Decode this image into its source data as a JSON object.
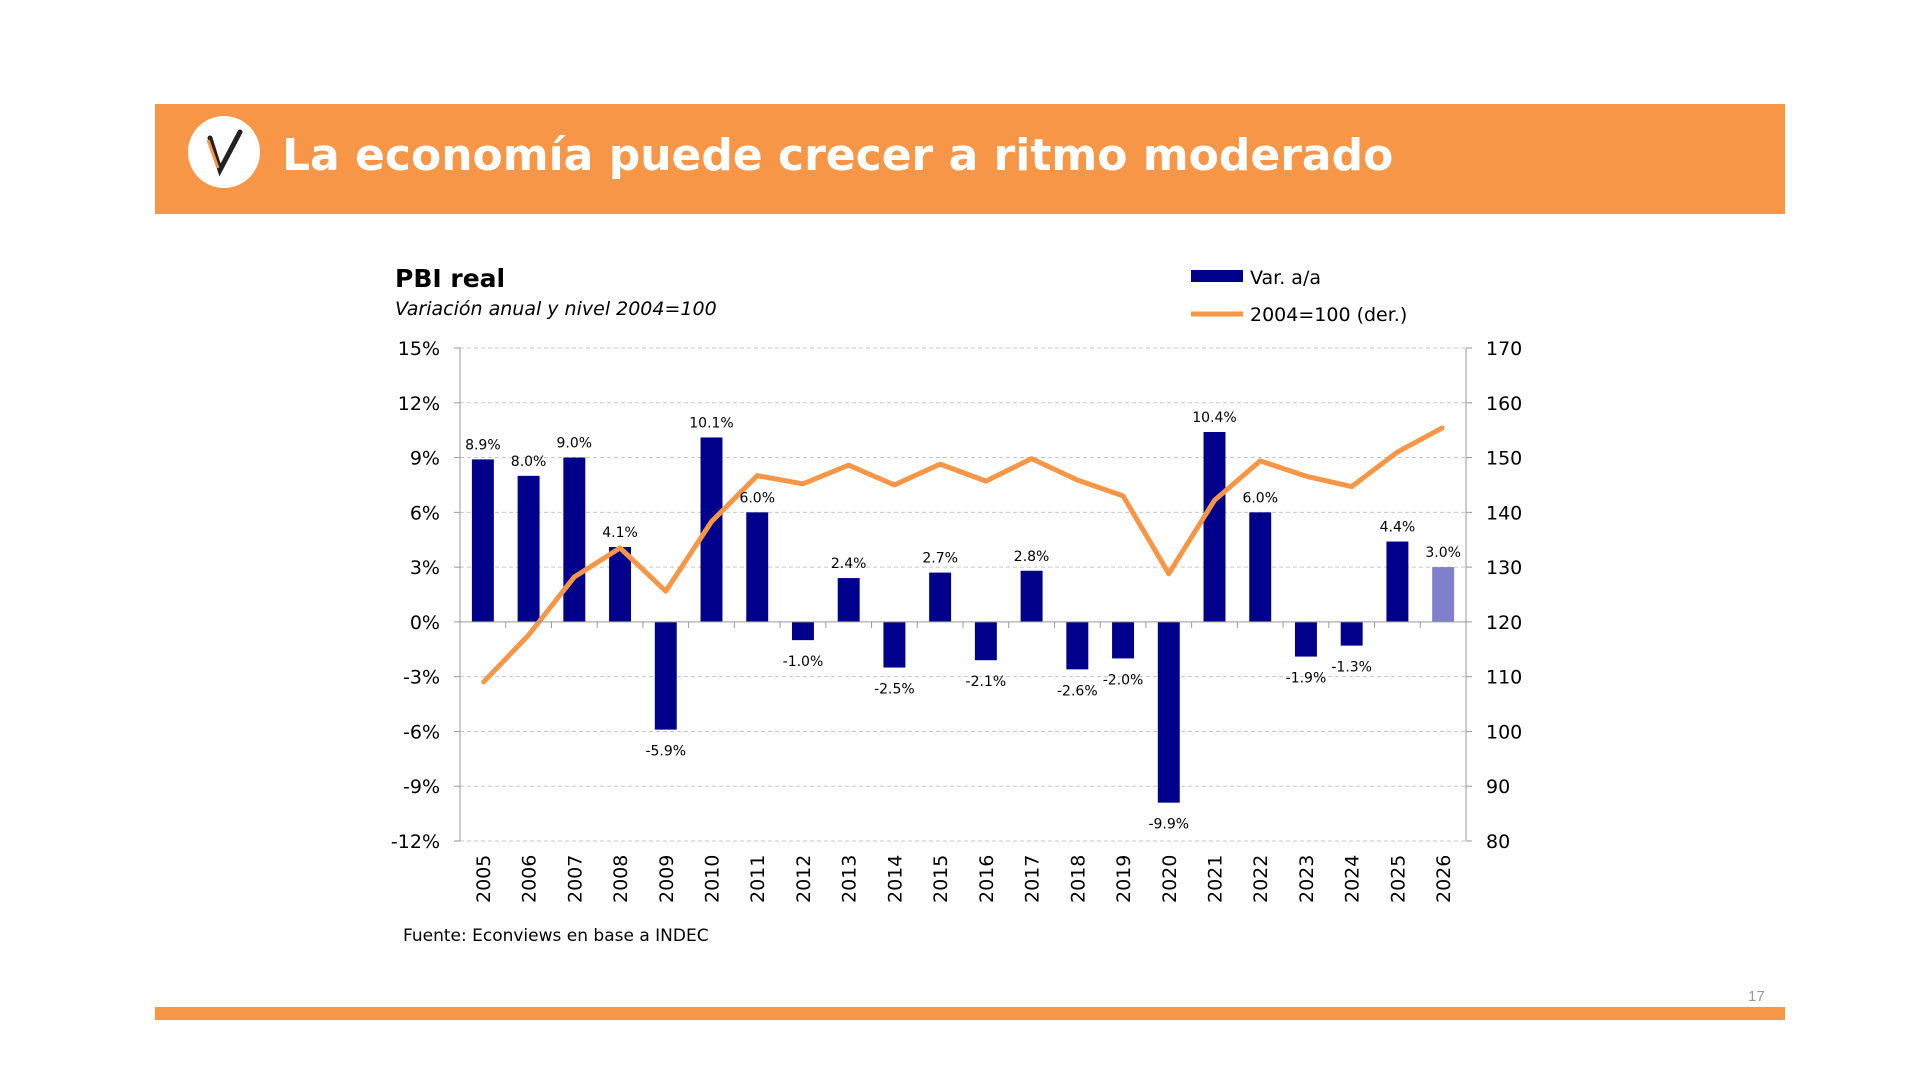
{
  "header": {
    "title": "La economía puede crecer a ritmo moderado",
    "logo_letter": "V"
  },
  "page_number": "17",
  "colors": {
    "accent": "#F79646",
    "bar": "#00008B",
    "bar_projected": "#7F7FCC",
    "line": "#F79646"
  },
  "chart_data": {
    "type": "bar+line",
    "title": "PBI real",
    "subtitle": "Variación anual y nivel 2004=100",
    "source": "Fuente: Econviews en base a INDEC",
    "legend_position": "top-right",
    "grid": true,
    "categories": [
      "2005",
      "2006",
      "2007",
      "2008",
      "2009",
      "2010",
      "2011",
      "2012",
      "2013",
      "2014",
      "2015",
      "2016",
      "2017",
      "2018",
      "2019",
      "2020",
      "2021",
      "2022",
      "2023",
      "2024",
      "2025",
      "2026"
    ],
    "series": [
      {
        "name": "Var. a/a",
        "type": "bar",
        "axis": "left",
        "values": [
          8.9,
          8.0,
          9.0,
          4.1,
          -5.9,
          10.1,
          6.0,
          -1.0,
          2.4,
          -2.5,
          2.7,
          -2.1,
          2.8,
          -2.6,
          -2.0,
          -9.9,
          10.4,
          6.0,
          -1.9,
          -1.3,
          4.4,
          3.0
        ],
        "labels": [
          "8.9%",
          "8.0%",
          "9.0%",
          "4.1%",
          "-5.9%",
          "10.1%",
          "6.0%",
          "-1.0%",
          "2.4%",
          "-2.5%",
          "2.7%",
          "-2.1%",
          "2.8%",
          "-2.6%",
          "-2.0%",
          "-9.9%",
          "10.4%",
          "6.0%",
          "-1.9%",
          "-1.3%",
          "4.4%",
          "3.0%"
        ],
        "projected_from": "2026"
      },
      {
        "name": "2004=100 (der.)",
        "type": "line",
        "axis": "right",
        "values": [
          108.9,
          117.6,
          128.2,
          133.5,
          125.6,
          138.3,
          146.7,
          145.2,
          148.6,
          145.0,
          148.8,
          145.7,
          149.8,
          145.9,
          143.0,
          128.8,
          142.2,
          149.4,
          146.6,
          144.7,
          151.0,
          155.5
        ]
      }
    ],
    "y_left": {
      "range": [
        -12,
        15
      ],
      "ticks": [
        "15%",
        "12%",
        "9%",
        "6%",
        "3%",
        "0%",
        "-3%",
        "-6%",
        "-9%",
        "-12%"
      ],
      "tick_values": [
        15,
        12,
        9,
        6,
        3,
        0,
        -3,
        -6,
        -9,
        -12
      ]
    },
    "y_right": {
      "range": [
        80,
        170
      ],
      "ticks": [
        "170",
        "160",
        "150",
        "140",
        "130",
        "120",
        "110",
        "100",
        "90",
        "80"
      ],
      "tick_values": [
        170,
        160,
        150,
        140,
        130,
        120,
        110,
        100,
        90,
        80
      ]
    }
  }
}
